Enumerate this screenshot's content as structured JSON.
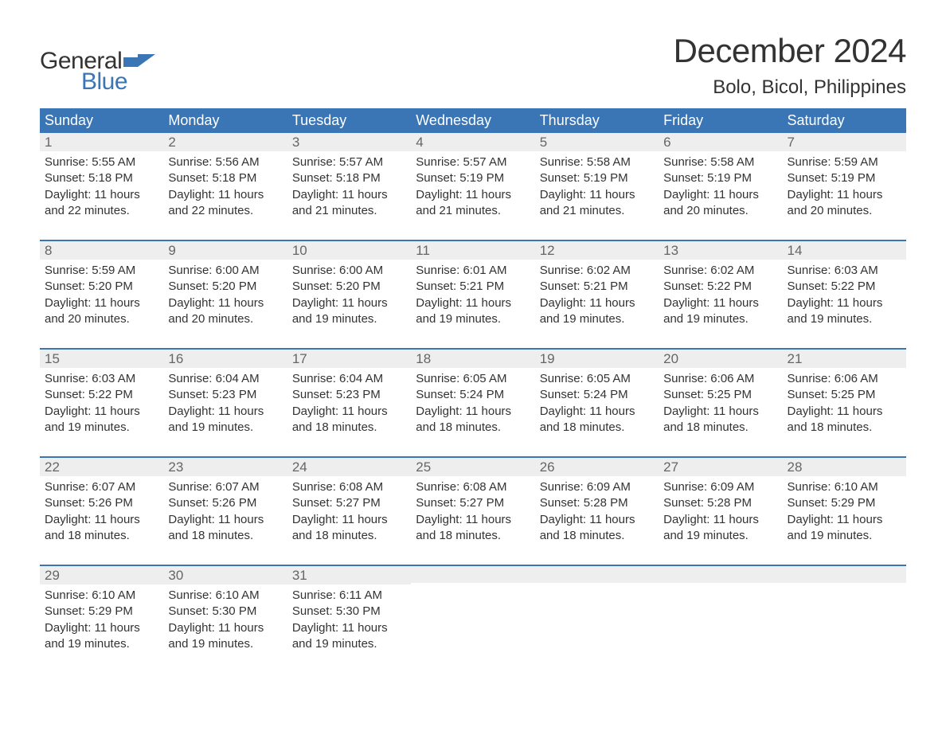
{
  "logo": {
    "text_general": "General",
    "text_blue": "Blue",
    "flag_color": "#3a75b5"
  },
  "title": "December 2024",
  "location": "Bolo, Bicol, Philippines",
  "colors": {
    "header_bg": "#3a75b5",
    "header_text": "#ffffff",
    "day_num_bg": "#eeeeee",
    "day_num_color": "#666666",
    "body_text": "#333333",
    "week_border": "#3a75b5",
    "page_bg": "#ffffff"
  },
  "fonts": {
    "title_size_pt": 32,
    "location_size_pt": 18,
    "day_header_size_pt": 14,
    "day_num_size_pt": 13,
    "body_size_pt": 11
  },
  "day_headers": [
    "Sunday",
    "Monday",
    "Tuesday",
    "Wednesday",
    "Thursday",
    "Friday",
    "Saturday"
  ],
  "weeks": [
    [
      {
        "num": "1",
        "sunrise": "Sunrise: 5:55 AM",
        "sunset": "Sunset: 5:18 PM",
        "daylight1": "Daylight: 11 hours",
        "daylight2": "and 22 minutes."
      },
      {
        "num": "2",
        "sunrise": "Sunrise: 5:56 AM",
        "sunset": "Sunset: 5:18 PM",
        "daylight1": "Daylight: 11 hours",
        "daylight2": "and 22 minutes."
      },
      {
        "num": "3",
        "sunrise": "Sunrise: 5:57 AM",
        "sunset": "Sunset: 5:18 PM",
        "daylight1": "Daylight: 11 hours",
        "daylight2": "and 21 minutes."
      },
      {
        "num": "4",
        "sunrise": "Sunrise: 5:57 AM",
        "sunset": "Sunset: 5:19 PM",
        "daylight1": "Daylight: 11 hours",
        "daylight2": "and 21 minutes."
      },
      {
        "num": "5",
        "sunrise": "Sunrise: 5:58 AM",
        "sunset": "Sunset: 5:19 PM",
        "daylight1": "Daylight: 11 hours",
        "daylight2": "and 21 minutes."
      },
      {
        "num": "6",
        "sunrise": "Sunrise: 5:58 AM",
        "sunset": "Sunset: 5:19 PM",
        "daylight1": "Daylight: 11 hours",
        "daylight2": "and 20 minutes."
      },
      {
        "num": "7",
        "sunrise": "Sunrise: 5:59 AM",
        "sunset": "Sunset: 5:19 PM",
        "daylight1": "Daylight: 11 hours",
        "daylight2": "and 20 minutes."
      }
    ],
    [
      {
        "num": "8",
        "sunrise": "Sunrise: 5:59 AM",
        "sunset": "Sunset: 5:20 PM",
        "daylight1": "Daylight: 11 hours",
        "daylight2": "and 20 minutes."
      },
      {
        "num": "9",
        "sunrise": "Sunrise: 6:00 AM",
        "sunset": "Sunset: 5:20 PM",
        "daylight1": "Daylight: 11 hours",
        "daylight2": "and 20 minutes."
      },
      {
        "num": "10",
        "sunrise": "Sunrise: 6:00 AM",
        "sunset": "Sunset: 5:20 PM",
        "daylight1": "Daylight: 11 hours",
        "daylight2": "and 19 minutes."
      },
      {
        "num": "11",
        "sunrise": "Sunrise: 6:01 AM",
        "sunset": "Sunset: 5:21 PM",
        "daylight1": "Daylight: 11 hours",
        "daylight2": "and 19 minutes."
      },
      {
        "num": "12",
        "sunrise": "Sunrise: 6:02 AM",
        "sunset": "Sunset: 5:21 PM",
        "daylight1": "Daylight: 11 hours",
        "daylight2": "and 19 minutes."
      },
      {
        "num": "13",
        "sunrise": "Sunrise: 6:02 AM",
        "sunset": "Sunset: 5:22 PM",
        "daylight1": "Daylight: 11 hours",
        "daylight2": "and 19 minutes."
      },
      {
        "num": "14",
        "sunrise": "Sunrise: 6:03 AM",
        "sunset": "Sunset: 5:22 PM",
        "daylight1": "Daylight: 11 hours",
        "daylight2": "and 19 minutes."
      }
    ],
    [
      {
        "num": "15",
        "sunrise": "Sunrise: 6:03 AM",
        "sunset": "Sunset: 5:22 PM",
        "daylight1": "Daylight: 11 hours",
        "daylight2": "and 19 minutes."
      },
      {
        "num": "16",
        "sunrise": "Sunrise: 6:04 AM",
        "sunset": "Sunset: 5:23 PM",
        "daylight1": "Daylight: 11 hours",
        "daylight2": "and 19 minutes."
      },
      {
        "num": "17",
        "sunrise": "Sunrise: 6:04 AM",
        "sunset": "Sunset: 5:23 PM",
        "daylight1": "Daylight: 11 hours",
        "daylight2": "and 18 minutes."
      },
      {
        "num": "18",
        "sunrise": "Sunrise: 6:05 AM",
        "sunset": "Sunset: 5:24 PM",
        "daylight1": "Daylight: 11 hours",
        "daylight2": "and 18 minutes."
      },
      {
        "num": "19",
        "sunrise": "Sunrise: 6:05 AM",
        "sunset": "Sunset: 5:24 PM",
        "daylight1": "Daylight: 11 hours",
        "daylight2": "and 18 minutes."
      },
      {
        "num": "20",
        "sunrise": "Sunrise: 6:06 AM",
        "sunset": "Sunset: 5:25 PM",
        "daylight1": "Daylight: 11 hours",
        "daylight2": "and 18 minutes."
      },
      {
        "num": "21",
        "sunrise": "Sunrise: 6:06 AM",
        "sunset": "Sunset: 5:25 PM",
        "daylight1": "Daylight: 11 hours",
        "daylight2": "and 18 minutes."
      }
    ],
    [
      {
        "num": "22",
        "sunrise": "Sunrise: 6:07 AM",
        "sunset": "Sunset: 5:26 PM",
        "daylight1": "Daylight: 11 hours",
        "daylight2": "and 18 minutes."
      },
      {
        "num": "23",
        "sunrise": "Sunrise: 6:07 AM",
        "sunset": "Sunset: 5:26 PM",
        "daylight1": "Daylight: 11 hours",
        "daylight2": "and 18 minutes."
      },
      {
        "num": "24",
        "sunrise": "Sunrise: 6:08 AM",
        "sunset": "Sunset: 5:27 PM",
        "daylight1": "Daylight: 11 hours",
        "daylight2": "and 18 minutes."
      },
      {
        "num": "25",
        "sunrise": "Sunrise: 6:08 AM",
        "sunset": "Sunset: 5:27 PM",
        "daylight1": "Daylight: 11 hours",
        "daylight2": "and 18 minutes."
      },
      {
        "num": "26",
        "sunrise": "Sunrise: 6:09 AM",
        "sunset": "Sunset: 5:28 PM",
        "daylight1": "Daylight: 11 hours",
        "daylight2": "and 18 minutes."
      },
      {
        "num": "27",
        "sunrise": "Sunrise: 6:09 AM",
        "sunset": "Sunset: 5:28 PM",
        "daylight1": "Daylight: 11 hours",
        "daylight2": "and 19 minutes."
      },
      {
        "num": "28",
        "sunrise": "Sunrise: 6:10 AM",
        "sunset": "Sunset: 5:29 PM",
        "daylight1": "Daylight: 11 hours",
        "daylight2": "and 19 minutes."
      }
    ],
    [
      {
        "num": "29",
        "sunrise": "Sunrise: 6:10 AM",
        "sunset": "Sunset: 5:29 PM",
        "daylight1": "Daylight: 11 hours",
        "daylight2": "and 19 minutes."
      },
      {
        "num": "30",
        "sunrise": "Sunrise: 6:10 AM",
        "sunset": "Sunset: 5:30 PM",
        "daylight1": "Daylight: 11 hours",
        "daylight2": "and 19 minutes."
      },
      {
        "num": "31",
        "sunrise": "Sunrise: 6:11 AM",
        "sunset": "Sunset: 5:30 PM",
        "daylight1": "Daylight: 11 hours",
        "daylight2": "and 19 minutes."
      },
      null,
      null,
      null,
      null
    ]
  ]
}
